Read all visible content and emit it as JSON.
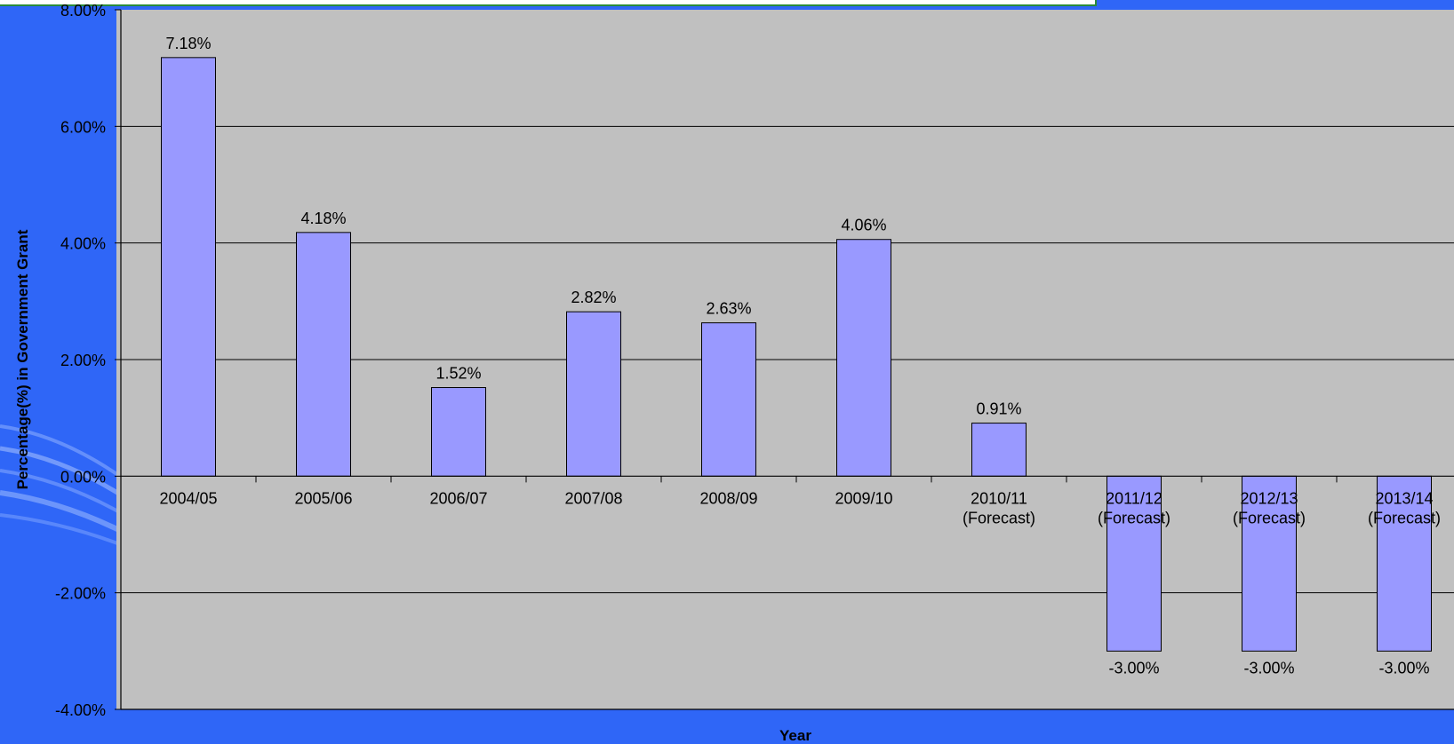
{
  "chart_data": {
    "type": "bar",
    "xlabel": "Year",
    "ylabel": "Percentage(%) in Government Grant",
    "ylim": [
      -0.04,
      0.08
    ],
    "ytick_values": [
      -0.04,
      -0.02,
      0,
      0.02,
      0.04,
      0.06,
      0.08
    ],
    "ytick_labels": [
      "-4.00%",
      "-2.00%",
      "0.00%",
      "2.00%",
      "4.00%",
      "6.00%",
      "8.00%"
    ],
    "grid": true,
    "categories": [
      [
        "2004/05"
      ],
      [
        "2005/06"
      ],
      [
        "2006/07"
      ],
      [
        "2007/08"
      ],
      [
        "2008/09"
      ],
      [
        "2009/10"
      ],
      [
        "2010/11",
        "(Forecast)"
      ],
      [
        "2011/12",
        "(Forecast)"
      ],
      [
        "2012/13",
        "(Forecast)"
      ],
      [
        "2013/14",
        "(Forecast)"
      ]
    ],
    "values": [
      0.0718,
      0.0418,
      0.0152,
      0.0282,
      0.0263,
      0.0406,
      0.0091,
      -0.03,
      -0.03,
      -0.03
    ],
    "data_labels": [
      "7.18%",
      "4.18%",
      "1.52%",
      "2.82%",
      "2.63%",
      "4.06%",
      "0.91%",
      "-3.00%",
      "-3.00%",
      "-3.00%"
    ],
    "colors": {
      "background": "#2f66f7",
      "plot_area": "#c0c0c0",
      "bar_fill": "#9999ff",
      "bar_stroke": "#000000",
      "gridline": "#000000"
    }
  }
}
